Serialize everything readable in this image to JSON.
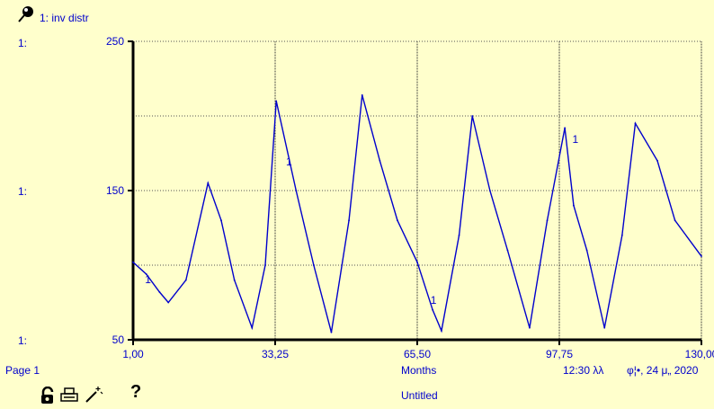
{
  "header": {
    "series_label": "1: inv  distr",
    "axis_prefix_top": "1:",
    "axis_prefix_mid": "1:",
    "axis_prefix_bot": "1:"
  },
  "footer": {
    "page": "Page 1",
    "xlabel": "Months",
    "time": "12:30 λλ",
    "date": "φ¦•, 24 μ„ 2020",
    "doc_title": "Untitled"
  },
  "toolbar": {
    "help_label": "?"
  },
  "colors": {
    "background": "#ffffcc",
    "series": "#0000cc",
    "grid": "#555555"
  },
  "chart_data": {
    "type": "line",
    "title": "",
    "xlabel": "Months",
    "ylabel": "",
    "xlim": [
      1,
      130
    ],
    "ylim": [
      50,
      250
    ],
    "yticks": [
      50,
      150,
      250
    ],
    "ytick_labels": [
      "50",
      "150",
      "250"
    ],
    "xticks": [
      1,
      33.25,
      65.5,
      97.75,
      130
    ],
    "xtick_labels": [
      "1,00",
      "33,25",
      "65,50",
      "97,75",
      "130,00"
    ],
    "grid": true,
    "series": [
      {
        "name": "1",
        "x": [
          1,
          4,
          7,
          9,
          13,
          18,
          21,
          24,
          28,
          31,
          33.5,
          38,
          42,
          46,
          50,
          53,
          57,
          61,
          65.5,
          69,
          71,
          75,
          78,
          82,
          86,
          91,
          95,
          99,
          101,
          104,
          108,
          112,
          115,
          120,
          124,
          130
        ],
        "y": [
          102,
          94,
          82,
          75,
          90,
          155,
          130,
          90,
          58,
          100,
          210,
          150,
          100,
          55,
          130,
          214,
          170,
          130,
          102,
          70,
          56,
          120,
          200,
          150,
          110,
          58,
          130,
          192,
          140,
          110,
          58,
          120,
          195,
          170,
          130,
          106
        ]
      }
    ],
    "point_labels": [
      {
        "text": "1",
        "x": 3.7,
        "y": 88
      },
      {
        "text": "1",
        "x": 35.7,
        "y": 167
      },
      {
        "text": "1",
        "x": 68.5,
        "y": 74
      },
      {
        "text": "1",
        "x": 100.7,
        "y": 182
      }
    ]
  }
}
